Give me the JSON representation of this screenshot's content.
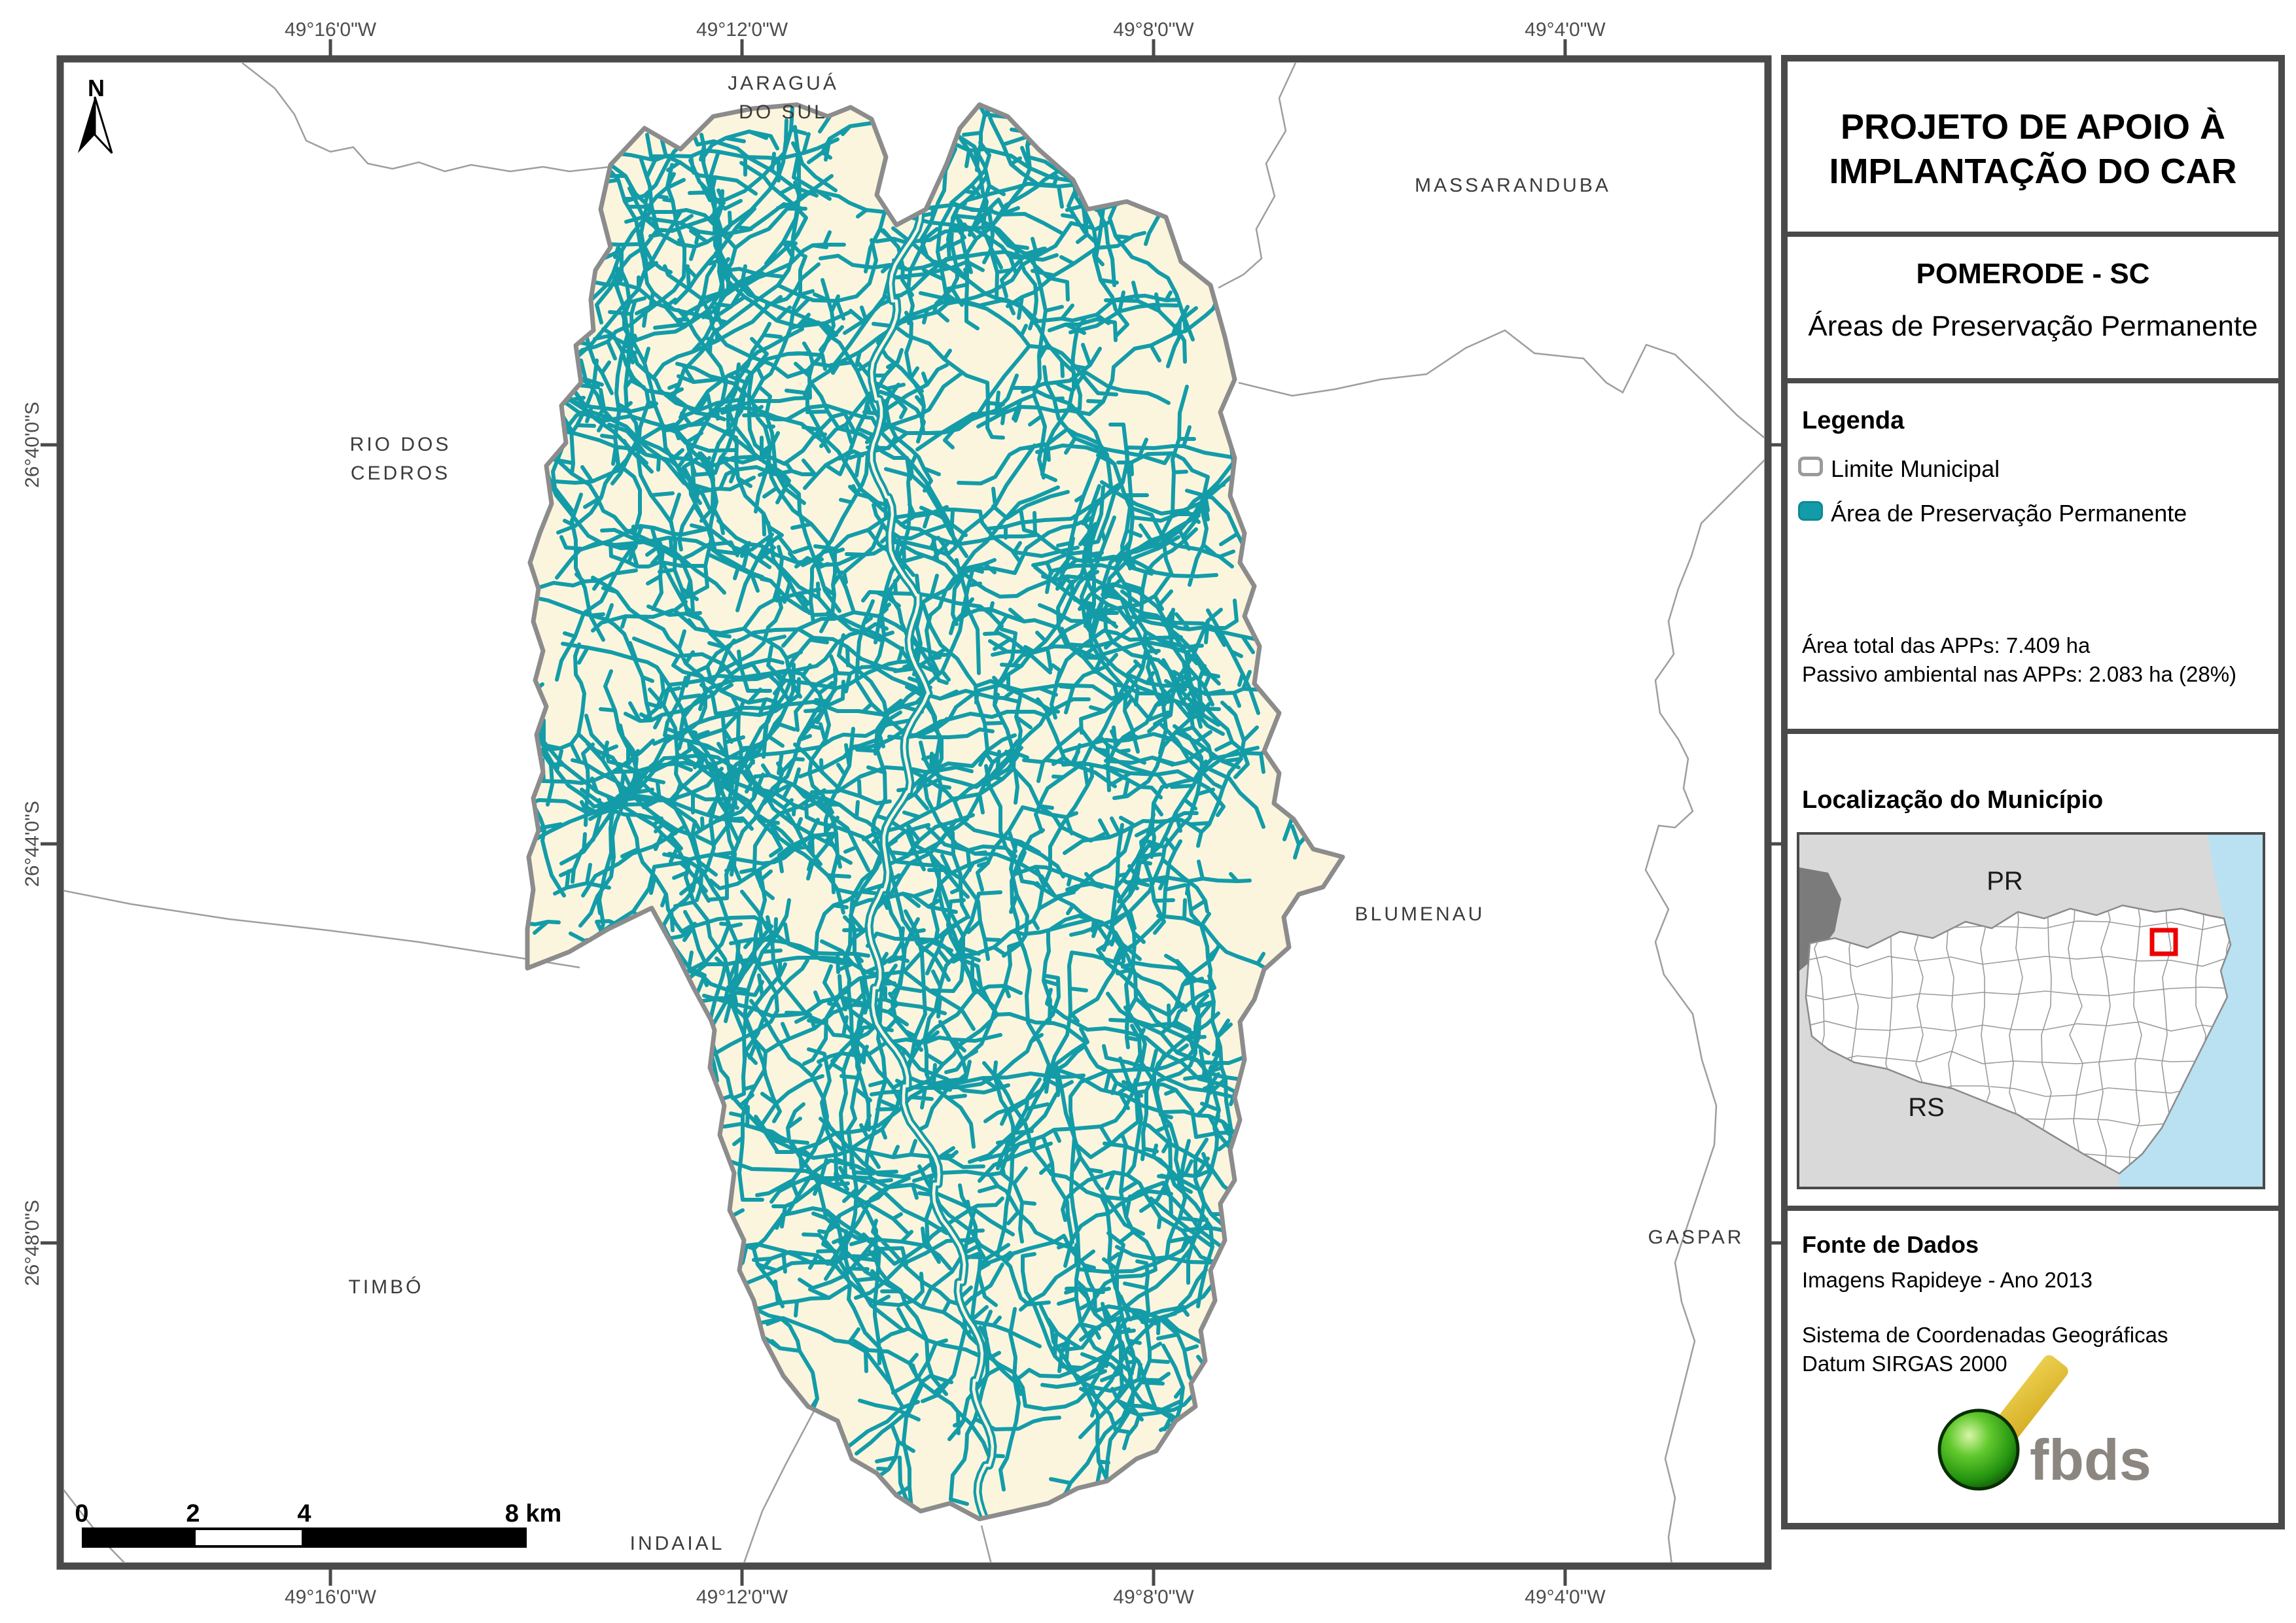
{
  "north": {
    "label": "N"
  },
  "panel": {
    "title_line1": "PROJETO DE APOIO À",
    "title_line2": "IMPLANTAÇÃO DO CAR",
    "municipality": "POMERODE - SC",
    "map_theme": "Áreas de Preservação Permanente",
    "legend_heading": "Legenda",
    "legend_items": [
      {
        "label": "Limite Municipal"
      },
      {
        "label": "Área de Preservação Permanente"
      }
    ],
    "stats_line1": "Área total das APPs: 7.409 ha",
    "stats_line2": "Passivo ambiental nas APPs: 2.083 ha (28%)",
    "location_heading": "Localização do Município",
    "inset_labels": {
      "pr": "PR",
      "rs": "RS"
    },
    "source_heading": "Fonte de Dados",
    "source_line1": "Imagens Rapideye - Ano 2013",
    "source_line2": "Sistema de Coordenadas Geográficas",
    "source_line3": "Datum SIRGAS 2000",
    "logo_text": "fbds"
  },
  "map": {
    "region_labels": [
      {
        "name": "jaragua-do-sul",
        "text": "JARAGUÁ\nDO SUL"
      },
      {
        "name": "massaranduba",
        "text": "MASSARANDUBA"
      },
      {
        "name": "rio-dos-cedros",
        "text": "RIO DOS\nCEDROS"
      },
      {
        "name": "blumenau",
        "text": "BLUMENAU"
      },
      {
        "name": "timbo",
        "text": "TIMBÓ"
      },
      {
        "name": "gaspar",
        "text": "GASPAR"
      },
      {
        "name": "indaial",
        "text": "INDAIAL"
      }
    ],
    "lon_labels": [
      "49°16'0\"W",
      "49°12'0\"W",
      "49°8'0\"W",
      "49°4'0\"W"
    ],
    "lat_labels": [
      "26°40'0\"S",
      "26°44'0\"S",
      "26°48'0\"S"
    ],
    "scalebar": {
      "ticks": [
        "0",
        "2",
        "4"
      ],
      "end": "8 km"
    }
  },
  "colors": {
    "app_teal": "#139CA8",
    "municipality_cream": "#FCF5DE",
    "boundary_gray": "#9E9E9E",
    "frame_gray": "#4A4A4A",
    "ocean_blue": "#B9E1F1",
    "inset_land_gray": "#D9D9D9",
    "inset_dark_gray": "#7B7B7B",
    "marker_red": "#EE0000"
  }
}
